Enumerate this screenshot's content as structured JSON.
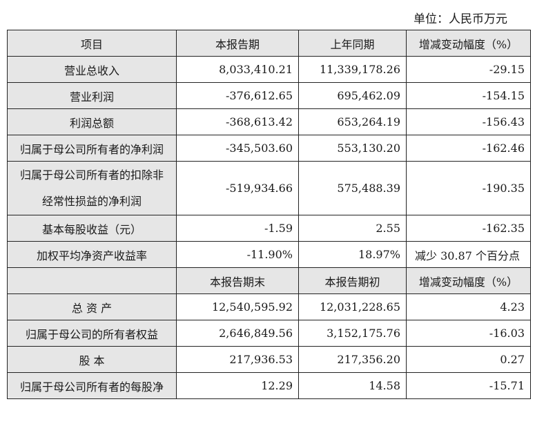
{
  "unit_label": "单位：人民币万元",
  "header1": [
    "项目",
    "本报告期",
    "上年同期",
    "增减变动幅度（%）"
  ],
  "rows1": [
    {
      "item": "营业总收入",
      "current": "8,033,410.21",
      "prior": "11,339,178.26",
      "change": "-29.15"
    },
    {
      "item": "营业利润",
      "current": "-376,612.65",
      "prior": "695,462.09",
      "change": "-154.15"
    },
    {
      "item": "利润总额",
      "current": "-368,613.42",
      "prior": "653,264.19",
      "change": "-156.43"
    },
    {
      "item": "归属于母公司所有者的净利润",
      "current": "-345,503.60",
      "prior": "553,130.20",
      "change": "-162.46"
    },
    {
      "item_line1": "归属于母公司所有者的扣除非",
      "item_line2": "经常性损益的净利润",
      "current": "-519,934.66",
      "prior": "575,488.39",
      "change": "-190.35"
    },
    {
      "item": "基本每股收益（元）",
      "current": "-1.59",
      "prior": "2.55",
      "change": "-162.35"
    },
    {
      "item": "加权平均净资产收益率",
      "current": "-11.90%",
      "prior": "18.97%",
      "change": "减少 30.87 个百分点"
    }
  ],
  "header2": [
    "",
    "本报告期末",
    "本报告期初",
    "增减变动幅度（%）"
  ],
  "rows2": [
    {
      "item": "总 资 产",
      "current": "12,540,595.92",
      "prior": "12,031,228.65",
      "change": "4.23"
    },
    {
      "item": "归属于母公司的所有者权益",
      "current": "2,646,849.56",
      "prior": "3,152,175.76",
      "change": "-16.03"
    },
    {
      "item": "股 本",
      "current": "217,936.53",
      "prior": "217,356.20",
      "change": "0.27"
    },
    {
      "item": "归属于母公司所有者的每股净",
      "current": "12.29",
      "prior": "14.58",
      "change": "-15.71"
    }
  ]
}
